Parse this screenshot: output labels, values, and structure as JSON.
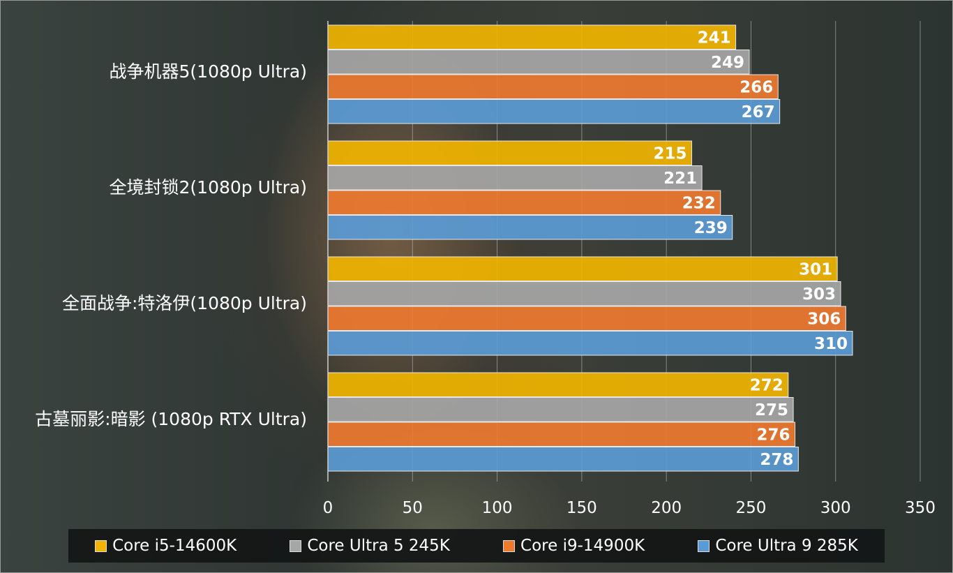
{
  "chart_data": {
    "type": "bar",
    "orientation": "horizontal",
    "categories": [
      "战争机器5(1080p Ultra)",
      "全境封锁2(1080p Ultra)",
      "全面战争:特洛伊(1080p Ultra)",
      "古墓丽影:暗影 (1080p RTX Ultra)"
    ],
    "series": [
      {
        "name": "Core i5-14600K",
        "color": "#f0b400",
        "values": [
          241,
          215,
          301,
          272
        ]
      },
      {
        "name": "Core Ultra 5 245K",
        "color": "#a6a6a6",
        "values": [
          249,
          221,
          303,
          275
        ]
      },
      {
        "name": "Core i9-14900K",
        "color": "#ee7a30",
        "values": [
          266,
          232,
          306,
          276
        ]
      },
      {
        "name": "Core Ultra 9 285K",
        "color": "#5b9bd5",
        "values": [
          267,
          239,
          310,
          278
        ]
      }
    ],
    "xlim": [
      0,
      350
    ],
    "xticks": [
      0,
      50,
      100,
      150,
      200,
      250,
      300,
      350
    ],
    "grid": true,
    "legend_position": "bottom",
    "title": "",
    "xlabel": "",
    "ylabel": ""
  }
}
